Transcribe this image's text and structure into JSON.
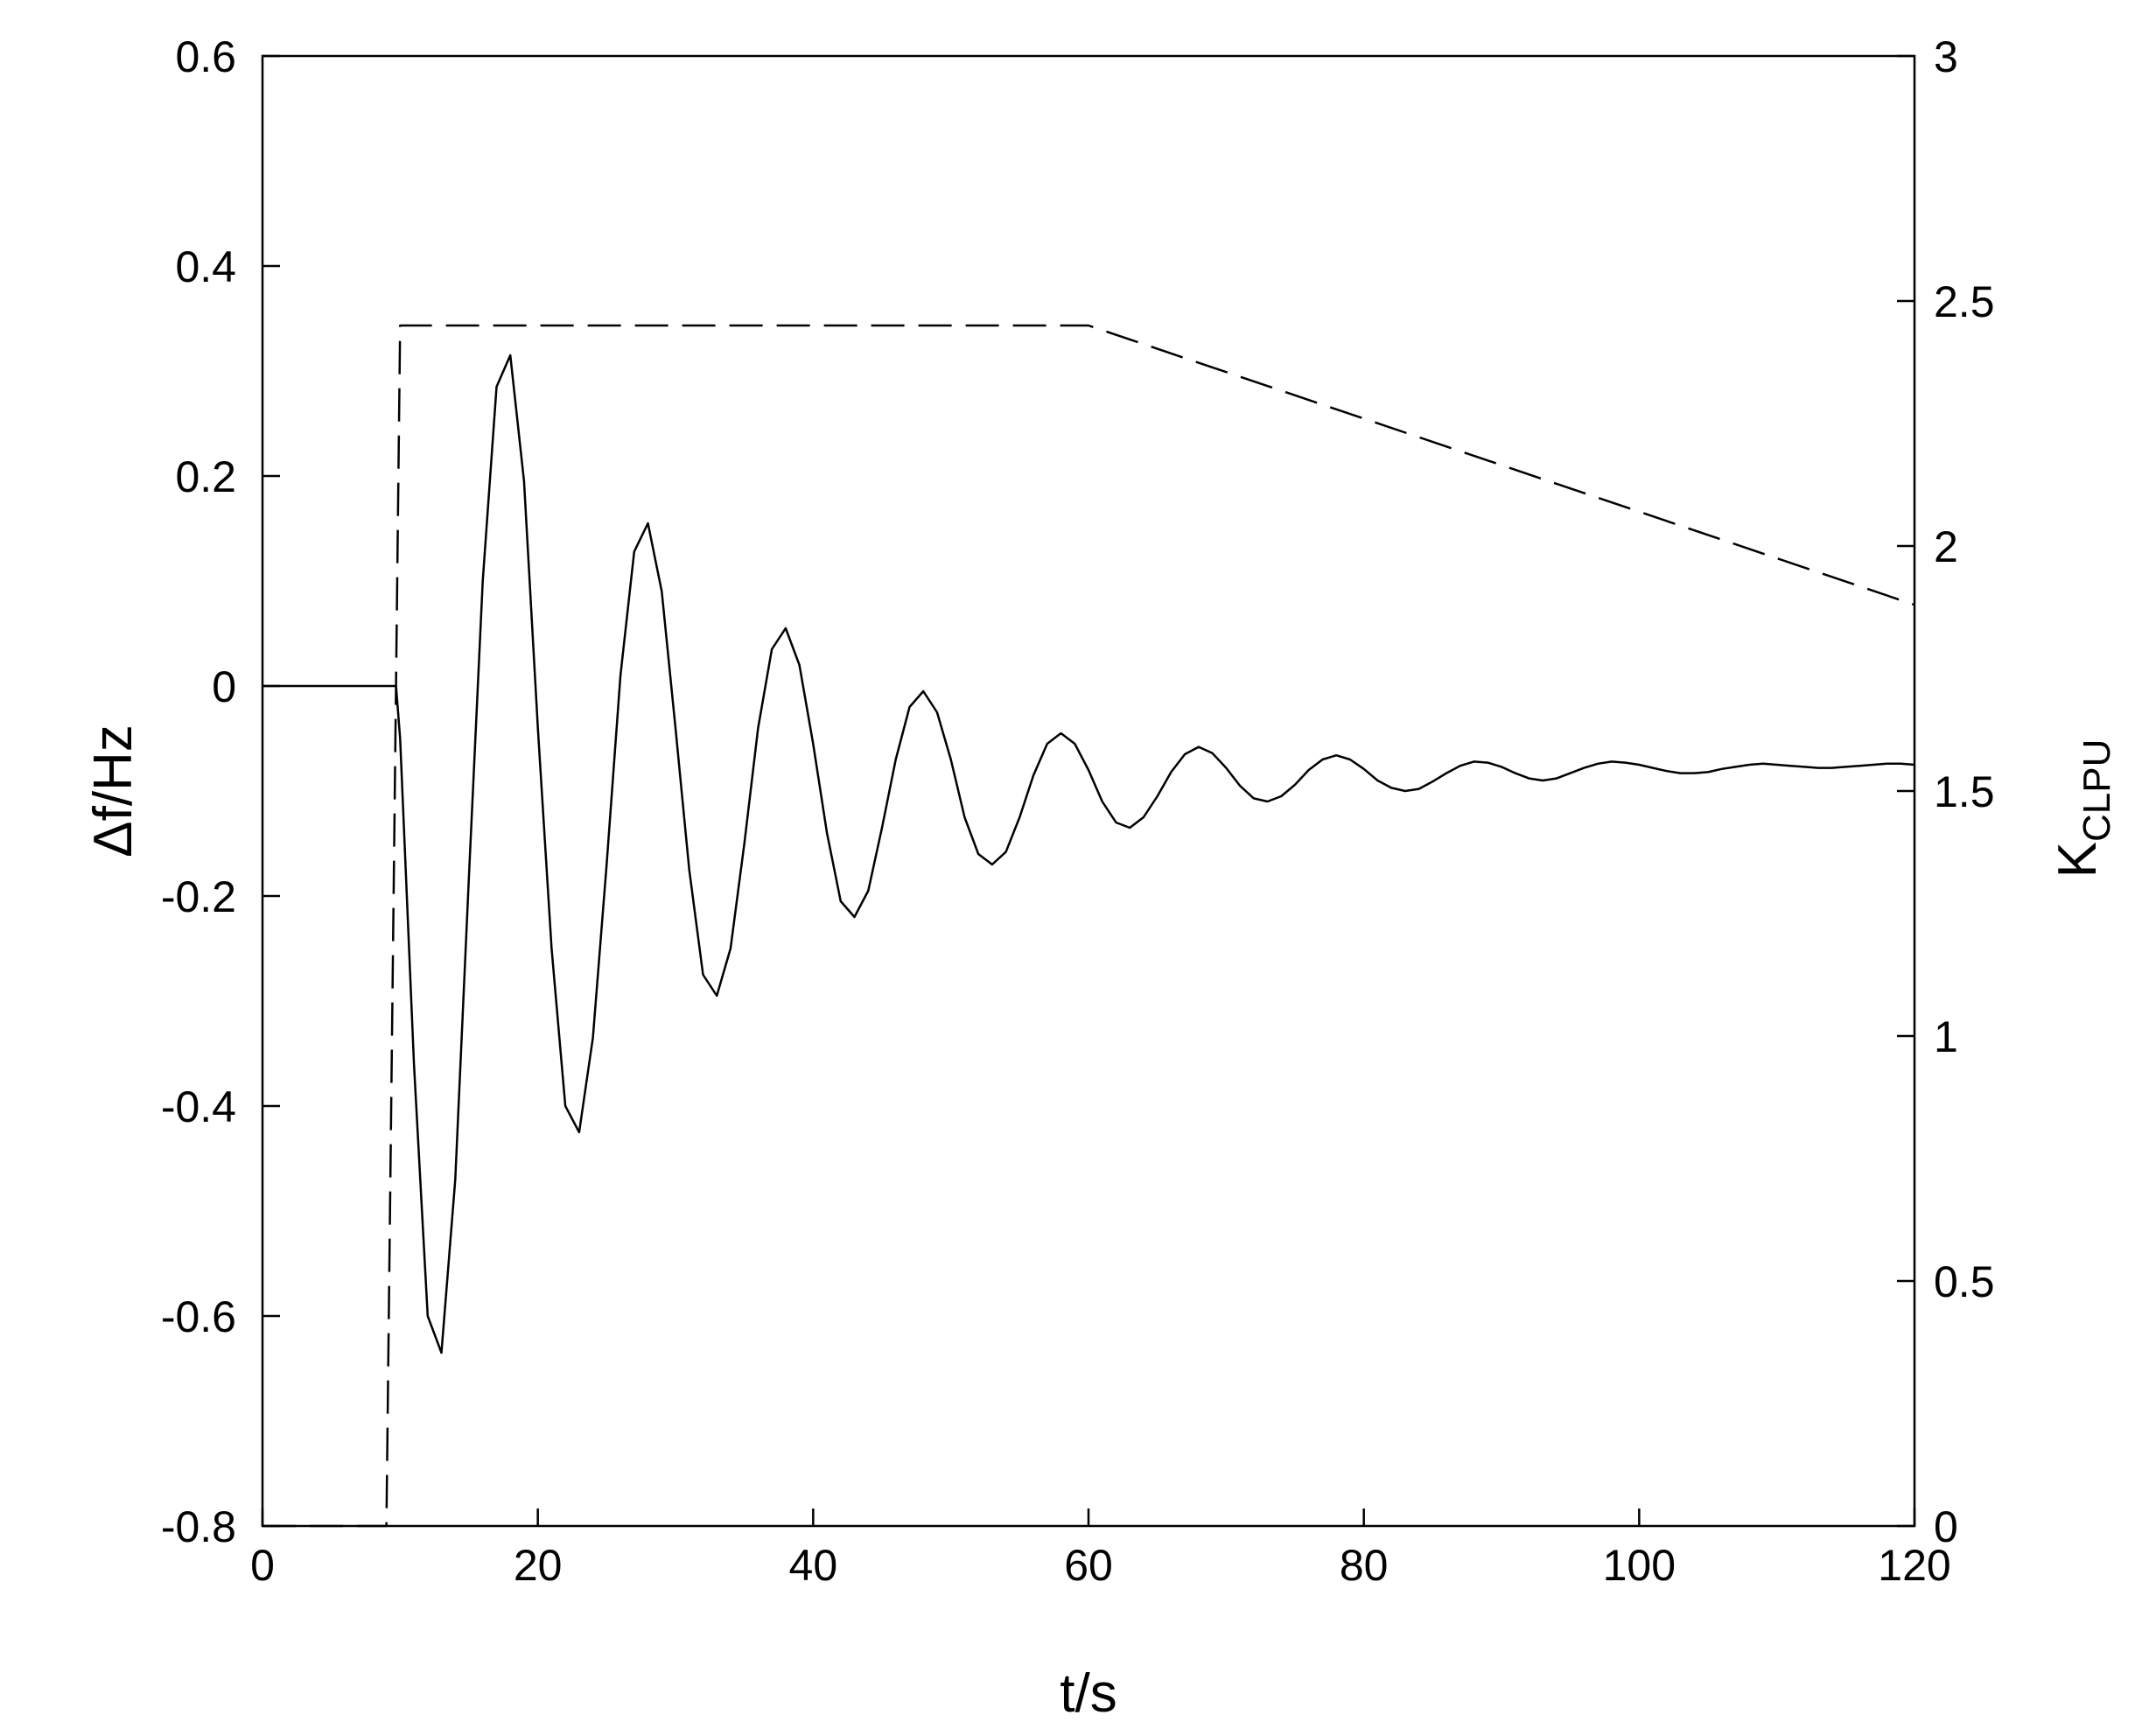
{
  "chart_data": {
    "type": "line",
    "title": "",
    "xlabel": "t/s",
    "ylabel_left": "Δf/Hz",
    "ylabel_right": "K",
    "ylabel_right_subscript": "CLPU",
    "xlim": [
      0,
      120
    ],
    "ylim_left": [
      -0.8,
      0.6
    ],
    "ylim_right": [
      0,
      3
    ],
    "x_ticks": [
      "0",
      "20",
      "40",
      "60",
      "80",
      "100",
      "120"
    ],
    "y_left_ticks": [
      "-0.8",
      "-0.6",
      "-0.4",
      "-0.2",
      "0",
      "0.2",
      "0.4",
      "0.6"
    ],
    "y_right_ticks": [
      "0",
      "0.5",
      "1",
      "1.5",
      "2",
      "2.5",
      "3"
    ],
    "grid": false,
    "legend": "none",
    "series": [
      {
        "axis": "left",
        "style": "solid",
        "color": "#000000",
        "x": [
          0,
          9.7,
          10,
          11,
          12,
          13,
          14,
          15,
          16,
          17,
          18,
          19,
          20,
          21,
          22,
          23,
          24,
          25,
          26,
          27,
          28,
          29,
          30,
          31,
          32,
          33,
          34,
          35,
          36,
          37,
          38,
          39,
          40,
          41,
          42,
          43,
          44,
          45,
          46,
          47,
          48,
          49,
          50,
          51,
          52,
          53,
          54,
          55,
          56,
          57,
          58,
          59,
          60,
          61,
          62,
          63,
          64,
          65,
          66,
          67,
          68,
          69,
          70,
          71,
          72,
          73,
          74,
          75,
          76,
          77,
          78,
          79,
          80,
          81,
          82,
          83,
          84,
          85,
          86,
          87,
          88,
          89,
          90,
          91,
          92,
          93,
          94,
          95,
          96,
          97,
          98,
          99,
          100,
          101,
          102,
          103,
          104,
          105,
          106,
          107,
          108,
          109,
          110,
          111,
          112,
          113,
          114,
          115,
          116,
          117,
          118,
          119,
          120
        ],
        "y": [
          0,
          0,
          -0.05,
          -0.36,
          -0.6,
          -0.635,
          -0.47,
          -0.18,
          0.1,
          0.285,
          0.315,
          0.195,
          -0.04,
          -0.25,
          -0.4,
          -0.425,
          -0.335,
          -0.17,
          0.01,
          0.128,
          0.155,
          0.09,
          -0.04,
          -0.175,
          -0.275,
          -0.295,
          -0.25,
          -0.15,
          -0.04,
          0.035,
          0.055,
          0.02,
          -0.055,
          -0.14,
          -0.205,
          -0.22,
          -0.195,
          -0.135,
          -0.07,
          -0.02,
          -0.005,
          -0.025,
          -0.07,
          -0.125,
          -0.16,
          -0.17,
          -0.158,
          -0.125,
          -0.085,
          -0.055,
          -0.045,
          -0.055,
          -0.08,
          -0.11,
          -0.13,
          -0.135,
          -0.125,
          -0.105,
          -0.082,
          -0.065,
          -0.058,
          -0.064,
          -0.078,
          -0.095,
          -0.107,
          -0.11,
          -0.105,
          -0.094,
          -0.08,
          -0.07,
          -0.066,
          -0.07,
          -0.079,
          -0.09,
          -0.097,
          -0.1,
          -0.098,
          -0.091,
          -0.083,
          -0.076,
          -0.072,
          -0.073,
          -0.077,
          -0.083,
          -0.088,
          -0.09,
          -0.088,
          -0.083,
          -0.078,
          -0.074,
          -0.072,
          -0.073,
          -0.075,
          -0.078,
          -0.081,
          -0.083,
          -0.083,
          -0.082,
          -0.079,
          -0.077,
          -0.075,
          -0.074,
          -0.075,
          -0.076,
          -0.077,
          -0.078,
          -0.078,
          -0.077,
          -0.076,
          -0.075,
          -0.074,
          -0.074,
          -0.075
        ]
      },
      {
        "axis": "right",
        "style": "dashed",
        "color": "#000000",
        "x": [
          0,
          9,
          10,
          60,
          120
        ],
        "y": [
          0,
          0,
          2.45,
          2.45,
          1.88
        ]
      }
    ]
  }
}
